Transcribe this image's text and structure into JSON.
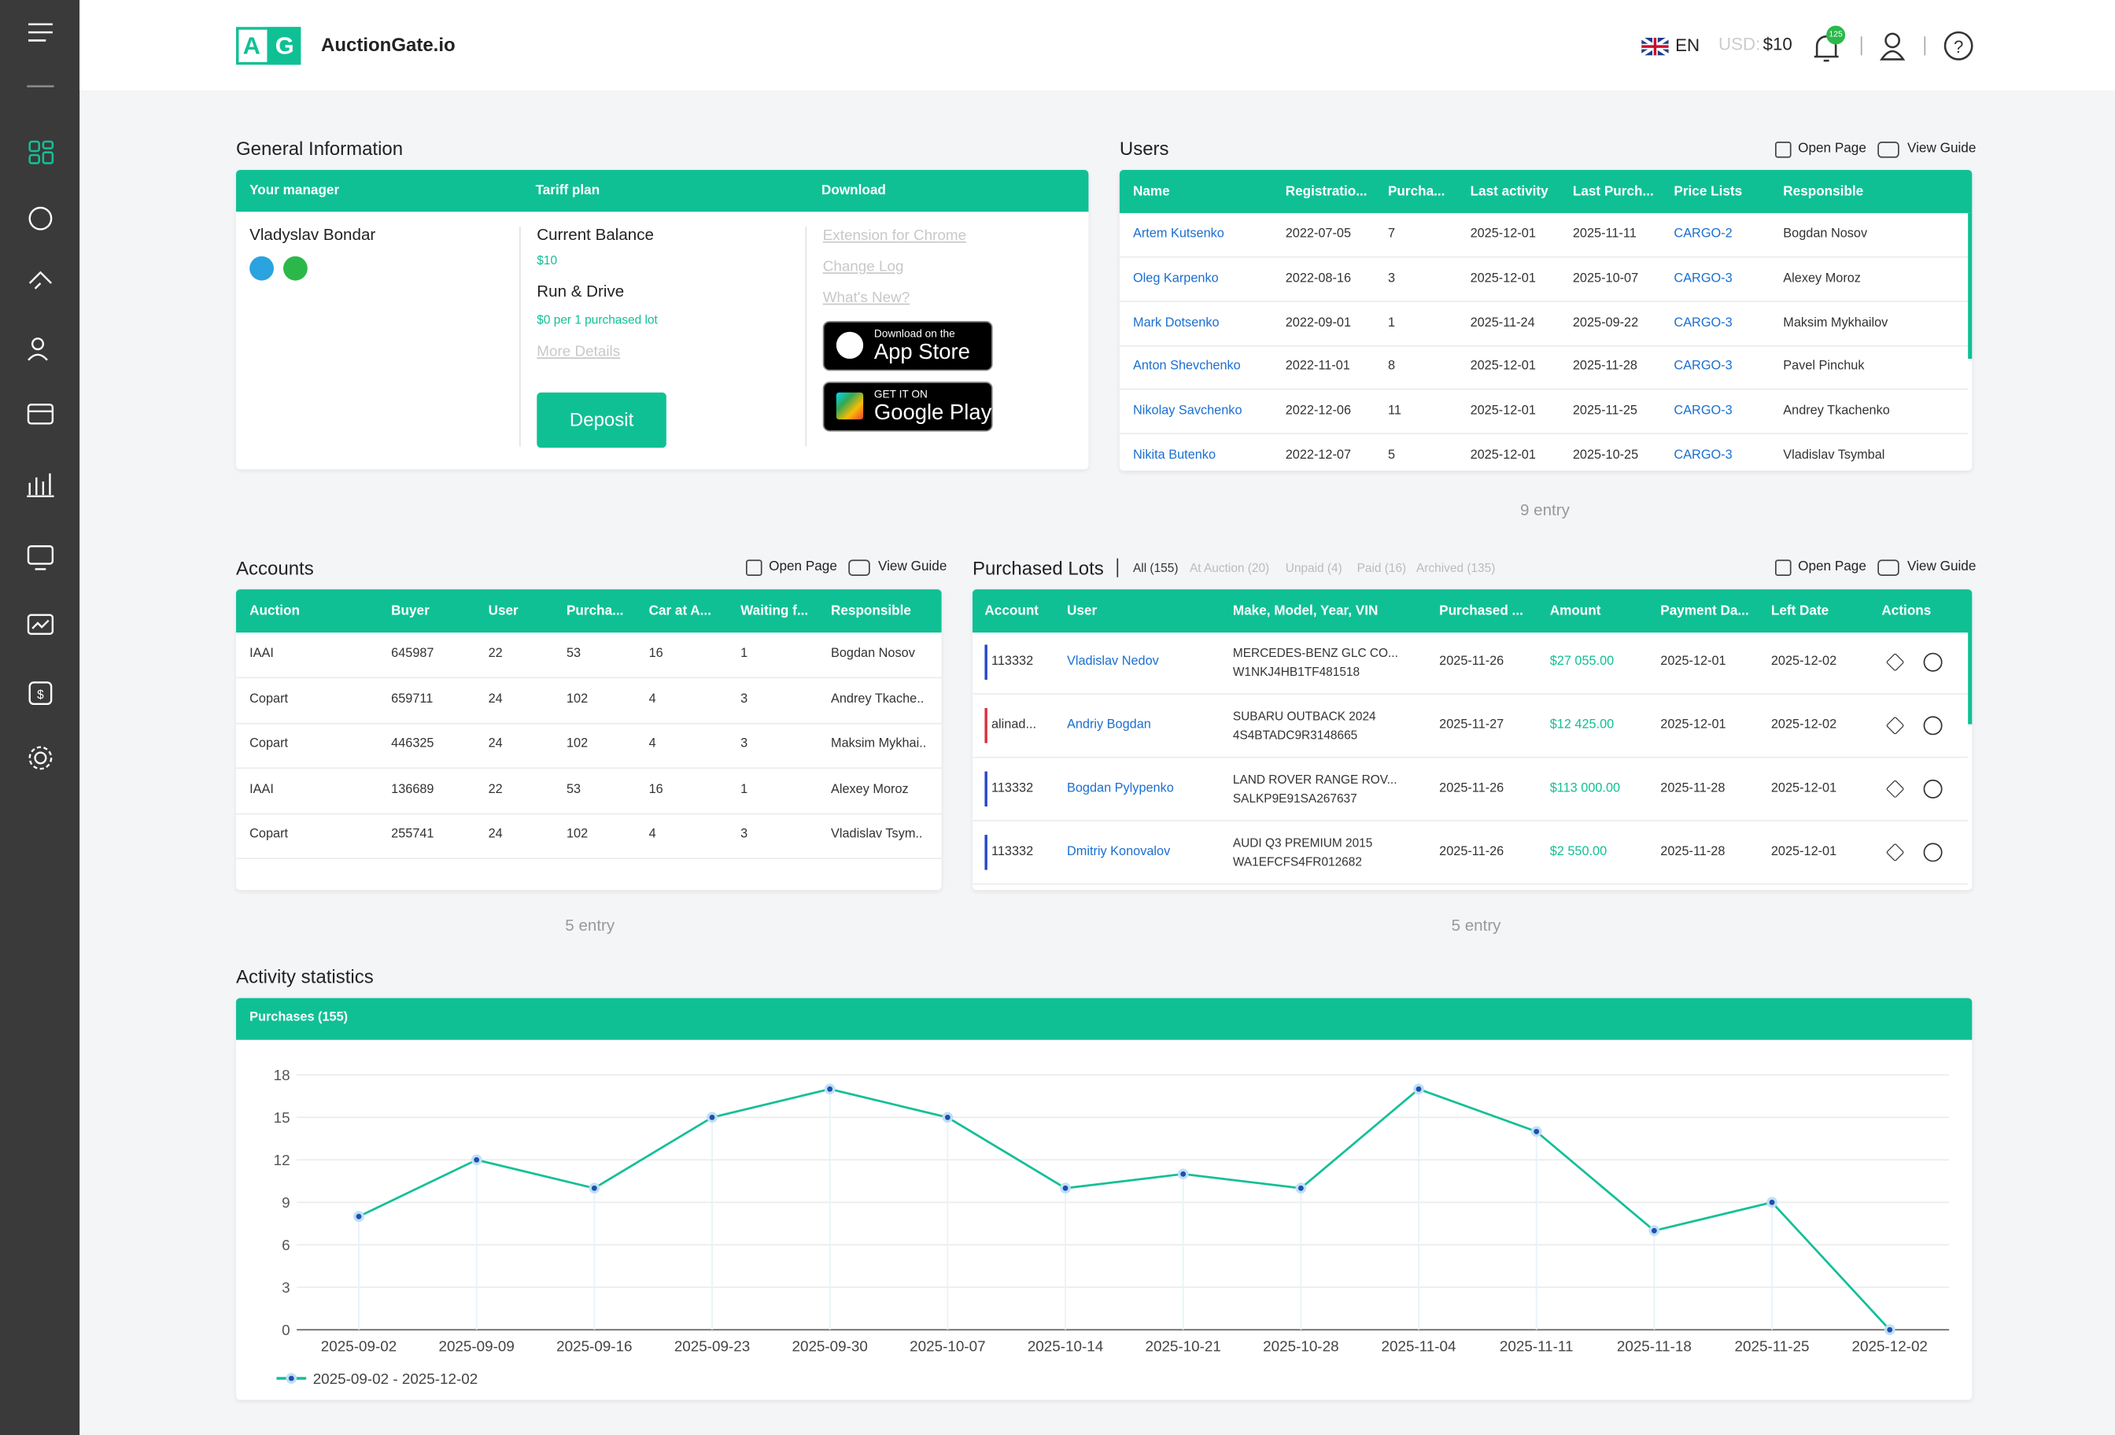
{
  "header": {
    "logo": [
      "A",
      "G"
    ],
    "brand": "AuctionGate.io",
    "language": "EN",
    "currency_label": "USD:",
    "balance": "$10",
    "notifications": "125"
  },
  "general_info": {
    "title": "General Information",
    "columns": [
      "Your manager",
      "Tariff plan",
      "Download"
    ],
    "manager": "Vladyslav Bondar",
    "balance_label": "Current Balance",
    "balance": "$10",
    "plan": "Run & Drive",
    "plan_price": "$0 per 1 purchased lot",
    "more_details": "More Details",
    "deposit": "Deposit",
    "links": [
      "Extension for Chrome",
      "Change Log",
      "What's New?"
    ],
    "app_store": [
      "Download on the",
      "App Store"
    ],
    "google_play": [
      "GET IT ON",
      "Google Play"
    ]
  },
  "users": {
    "title": "Users",
    "actions": [
      "Open Page",
      "View Guide"
    ],
    "columns": [
      "Name",
      "Registratio...",
      "Purcha...",
      "Last activity",
      "Last Purch...",
      "Price Lists",
      "Responsible"
    ],
    "rows": [
      [
        "Artem Kutsenko",
        "2022-07-05",
        7,
        "2025-12-01",
        "2025-11-11",
        "CARGO-2",
        "Bogdan Nosov"
      ],
      [
        "Oleg Karpenko",
        "2022-08-16",
        3,
        "2025-12-01",
        "2025-10-07",
        "CARGO-3",
        "Alexey Moroz"
      ],
      [
        "Mark Dotsenko",
        "2022-09-01",
        1,
        "2025-11-24",
        "2025-09-22",
        "CARGO-3",
        "Maksim Mykhailov"
      ],
      [
        "Anton Shevchenko",
        "2022-11-01",
        8,
        "2025-12-01",
        "2025-11-28",
        "CARGO-3",
        "Pavel Pinchuk"
      ],
      [
        "Nikolay Savchenko",
        "2022-12-06",
        11,
        "2025-12-01",
        "2025-11-25",
        "CARGO-3",
        "Andrey Tkachenko"
      ],
      [
        "Nikita Butenko",
        "2022-12-07",
        5,
        "2025-12-01",
        "2025-10-25",
        "CARGO-3",
        "Vladislav Tsymbal"
      ]
    ],
    "footer": "9 entry"
  },
  "accounts": {
    "title": "Accounts",
    "actions": [
      "Open Page",
      "View Guide"
    ],
    "columns": [
      "Auction",
      "Buyer",
      "User",
      "Purcha...",
      "Car at A...",
      "Waiting f...",
      "Responsible"
    ],
    "rows": [
      [
        "IAAI",
        645987,
        22,
        53,
        16,
        1,
        "Bogdan  Nosov"
      ],
      [
        "Copart",
        659711,
        24,
        102,
        4,
        3,
        "Andrey Tkache.."
      ],
      [
        "Copart",
        446325,
        24,
        102,
        4,
        3,
        "Maksim Mykhai.."
      ],
      [
        "IAAI",
        136689,
        22,
        53,
        16,
        1,
        "Alexey Moroz"
      ],
      [
        "Copart",
        255741,
        24,
        102,
        4,
        3,
        "Vladislav Tsym.."
      ]
    ],
    "footer": "5 entry"
  },
  "lots": {
    "title": "Purchased Lots",
    "tabs": [
      "All (155)",
      "At Auction (20)",
      "Unpaid (4)",
      "Paid (16)",
      "Archived (135)"
    ],
    "actions": [
      "Open Page",
      "View Guide"
    ],
    "columns": [
      "Account",
      "User",
      "Make, Model, Year, VIN",
      "Purchased ...",
      "Amount",
      "Payment Da...",
      "Left Date",
      "Actions"
    ],
    "rows": [
      [
        113332,
        "Vladislav Nedov",
        "MERCEDES-BENZ GLC CO...",
        "W1NKJ4HB1TF481518",
        "2025-11-26",
        "$27 055.00",
        "2025-12-01",
        "2025-12-02"
      ],
      [
        "alinad...",
        "Andriy Bogdan",
        "SUBARU OUTBACK 2024",
        "4S4BTADC9R3148665",
        "2025-11-27",
        "$12 425.00",
        "2025-12-01",
        "2025-12-02"
      ],
      [
        113332,
        "Bogdan Pylypenko",
        "LAND ROVER RANGE ROV...",
        "SALKP9E91SA267637",
        "2025-11-26",
        "$113 000.00",
        "2025-11-28",
        "2025-12-01"
      ],
      [
        113332,
        "Dmitriy Konovalov",
        "AUDI Q3 PREMIUM 2015",
        "WA1EFCFS4FR012682",
        "2025-11-26",
        "$2 550.00",
        "2025-11-28",
        "2025-12-01"
      ]
    ],
    "row_markers": [
      "#2348c4",
      "#d8323c",
      "#2348c4",
      "#2348c4"
    ],
    "footer": "5 entry"
  },
  "chart_data": {
    "type": "line",
    "title": "Activity statistics",
    "subtitle": "Purchases (155)",
    "x": [
      "2025-09-02",
      "2025-09-09",
      "2025-09-16",
      "2025-09-23",
      "2025-09-30",
      "2025-10-07",
      "2025-10-14",
      "2025-10-21",
      "2025-10-28",
      "2025-11-04",
      "2025-11-11",
      "2025-11-18",
      "2025-11-25",
      "2025-12-02"
    ],
    "series": [
      {
        "name": "2025-09-02 - 2025-12-02",
        "color": "#14bf97",
        "values": [
          8,
          12,
          10,
          15,
          17,
          15,
          10,
          11,
          10,
          17,
          14,
          7,
          9,
          0
        ]
      }
    ],
    "ylim": [
      0,
      18
    ],
    "yticks": [
      0,
      3,
      6,
      9,
      12,
      15,
      18
    ],
    "grid": true
  }
}
